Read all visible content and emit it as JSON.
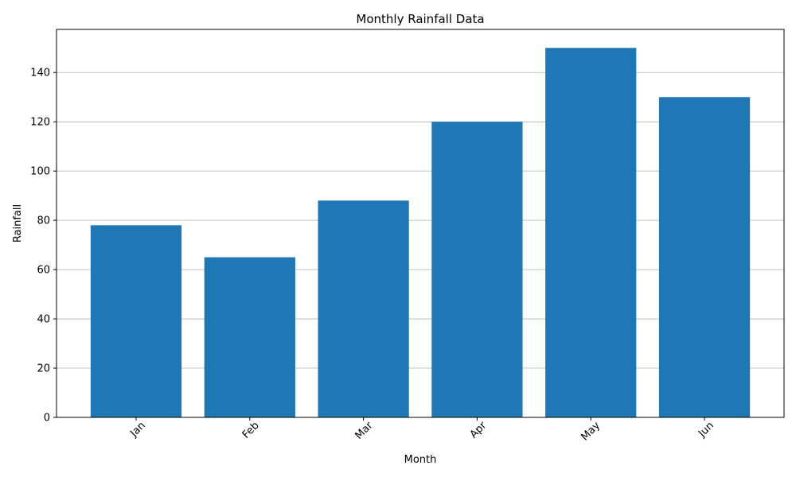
{
  "chart_data": {
    "type": "bar",
    "title": "Monthly Rainfall Data",
    "xlabel": "Month",
    "ylabel": "Rainfall",
    "categories": [
      "Jan",
      "Feb",
      "Mar",
      "Apr",
      "May",
      "Jun"
    ],
    "values": [
      78,
      65,
      88,
      120,
      150,
      130
    ],
    "ylim": [
      0,
      157.5
    ],
    "yticks": [
      0,
      20,
      40,
      60,
      80,
      100,
      120,
      140
    ],
    "grid": "y",
    "x_tick_rotation": 45,
    "bar_color": "#1f77b4"
  }
}
